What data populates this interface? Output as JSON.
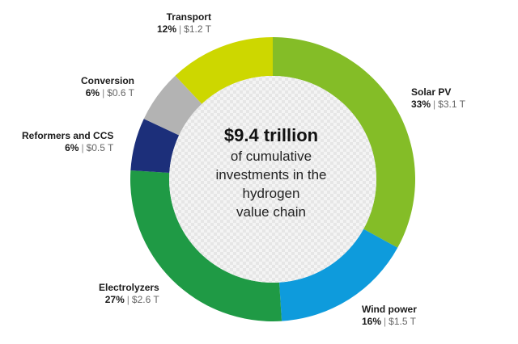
{
  "chart_data": {
    "type": "pie",
    "donut": true,
    "center": {
      "headline": "$9.4 trillion",
      "lines": [
        "of cumulative",
        "investments in the",
        "hydrogen",
        "value chain"
      ]
    },
    "slices": [
      {
        "name": "Solar PV",
        "percent": 33,
        "percent_label": "33%",
        "amount": "$3.1 T",
        "color": "#84bd27"
      },
      {
        "name": "Wind power",
        "percent": 16,
        "percent_label": "16%",
        "amount": "$1.5 T",
        "color": "#0e9bdc"
      },
      {
        "name": "Electrolyzers",
        "percent": 27,
        "percent_label": "27%",
        "amount": "$2.6 T",
        "color": "#1f9a45"
      },
      {
        "name": "Reformers and CCS",
        "percent": 6,
        "percent_label": "6%",
        "amount": "$0.5 T",
        "color": "#1c2f7a"
      },
      {
        "name": "Conversion",
        "percent": 6,
        "percent_label": "6%",
        "amount": "$0.6 T",
        "color": "#b3b3b3"
      },
      {
        "name": "Transport",
        "percent": 12,
        "percent_label": "12%",
        "amount": "$1.2 T",
        "color": "#cdd700"
      }
    ],
    "separator": "|"
  }
}
